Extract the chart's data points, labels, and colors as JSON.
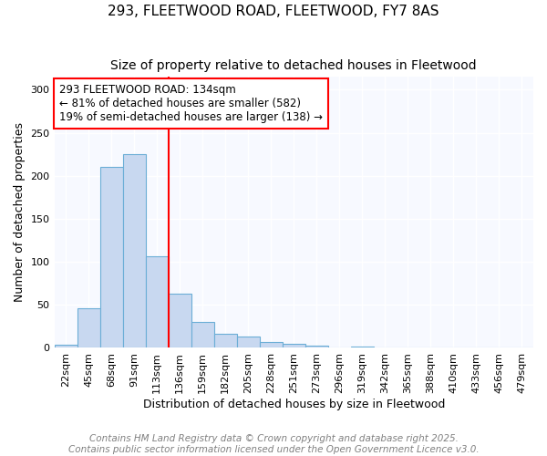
{
  "title": "293, FLEETWOOD ROAD, FLEETWOOD, FY7 8AS",
  "subtitle": "Size of property relative to detached houses in Fleetwood",
  "xlabel": "Distribution of detached houses by size in Fleetwood",
  "ylabel": "Number of detached properties",
  "bar_color": "#c8d8f0",
  "bar_edge_color": "#6baed6",
  "background_color": "#ffffff",
  "plot_bg_color": "#f7f9ff",
  "categories": [
    "22sqm",
    "45sqm",
    "68sqm",
    "91sqm",
    "113sqm",
    "136sqm",
    "159sqm",
    "182sqm",
    "205sqm",
    "228sqm",
    "251sqm",
    "273sqm",
    "296sqm",
    "319sqm",
    "342sqm",
    "365sqm",
    "388sqm",
    "410sqm",
    "433sqm",
    "456sqm",
    "479sqm"
  ],
  "values": [
    4,
    46,
    210,
    225,
    106,
    63,
    30,
    16,
    13,
    7,
    5,
    3,
    1,
    2,
    1,
    0,
    0,
    0,
    0,
    1,
    0
  ],
  "ylim": [
    0,
    315
  ],
  "yticks": [
    0,
    50,
    100,
    150,
    200,
    250,
    300
  ],
  "property_label": "293 FLEETWOOD ROAD: 134sqm",
  "annotation_line1": "← 81% of detached houses are smaller (582)",
  "annotation_line2": "19% of semi-detached houses are larger (138) →",
  "marker_bin_index": 5,
  "footer_line1": "Contains HM Land Registry data © Crown copyright and database right 2025.",
  "footer_line2": "Contains public sector information licensed under the Open Government Licence v3.0.",
  "title_fontsize": 11,
  "subtitle_fontsize": 10,
  "axis_label_fontsize": 9,
  "tick_fontsize": 8,
  "annotation_fontsize": 8.5,
  "footer_fontsize": 7.5
}
